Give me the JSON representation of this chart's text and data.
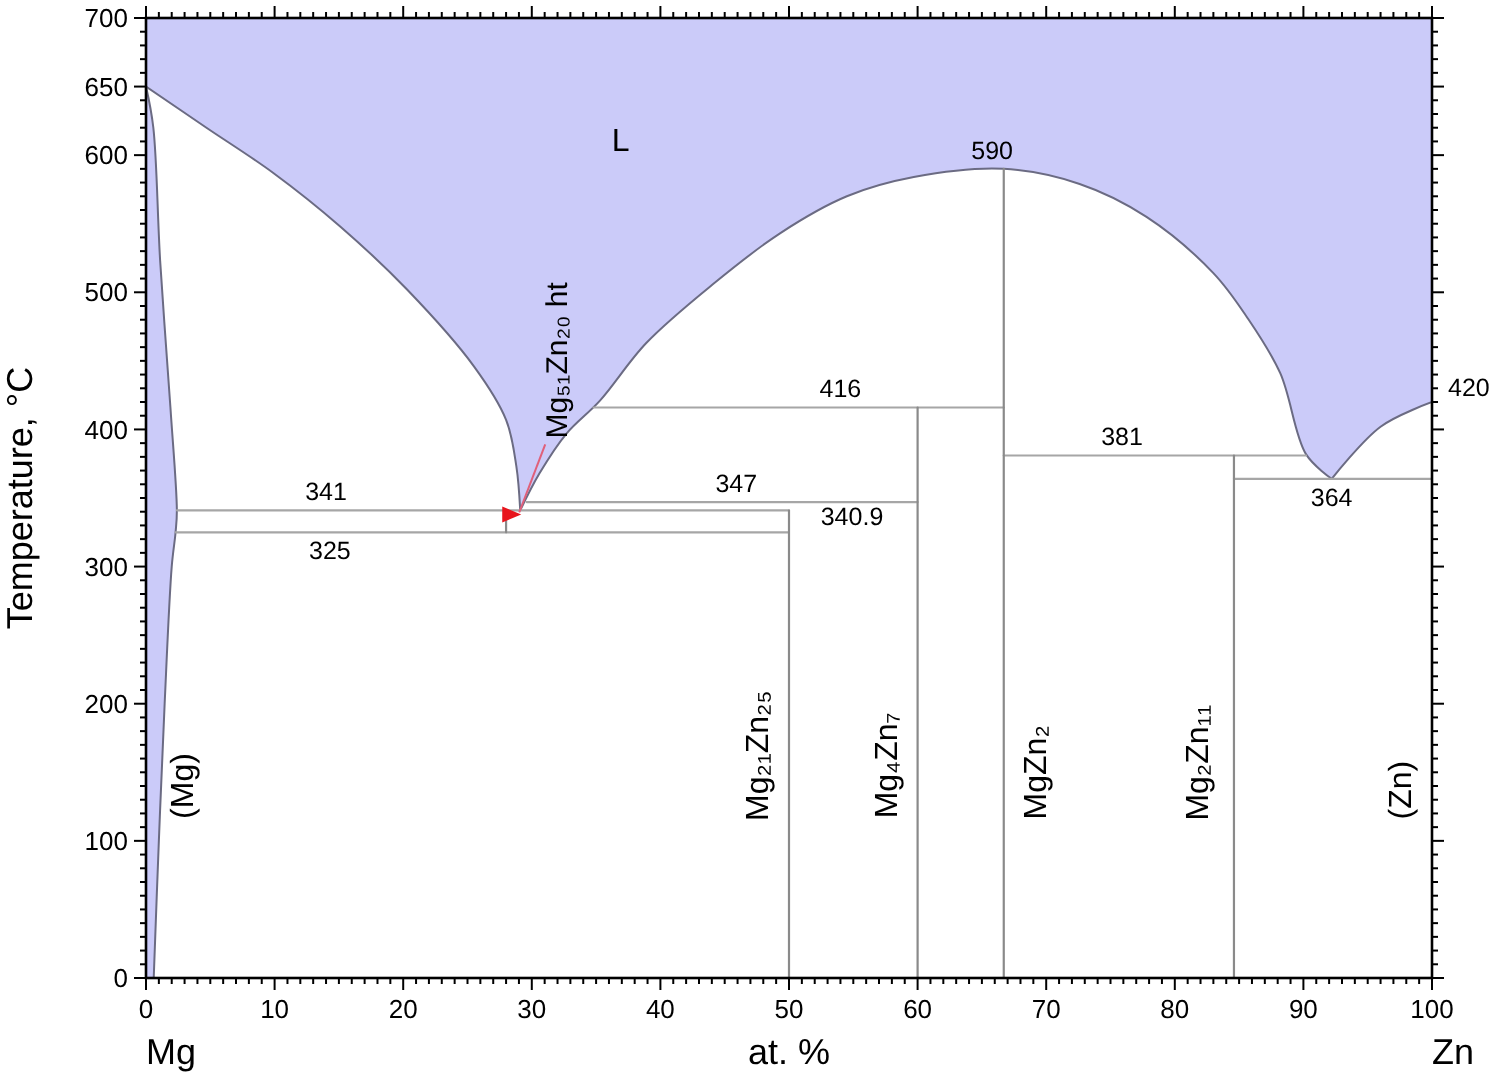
{
  "chart_data": {
    "type": "line",
    "xlabel": "at. %",
    "ylabel": "Temperature, °C",
    "xlim": [
      0,
      100
    ],
    "ylim": [
      0,
      700
    ],
    "xticks": [
      0,
      {
        "value": 1,
        "label": null
      },
      {
        "value": 2,
        "label": null
      },
      {
        "value": 3,
        "label": null
      },
      {
        "value": 4,
        "label": null
      },
      {
        "value": 5,
        "label": null
      },
      {
        "value": 6,
        "label": null
      },
      {
        "value": 7,
        "label": null
      },
      {
        "value": 8,
        "label": null
      },
      {
        "value": 9,
        "label": null
      },
      10,
      {
        "value": 11,
        "label": null
      },
      {
        "value": 12,
        "label": null
      },
      {
        "value": 13,
        "label": null
      },
      {
        "value": 14,
        "label": null
      },
      {
        "value": 15,
        "label": null
      },
      {
        "value": 16,
        "label": null
      },
      {
        "value": 17,
        "label": null
      },
      {
        "value": 18,
        "label": null
      },
      {
        "value": 19,
        "label": null
      },
      20,
      {
        "value": 21,
        "label": null
      },
      {
        "value": 22,
        "label": null
      },
      {
        "value": 23,
        "label": null
      },
      {
        "value": 24,
        "label": null
      },
      {
        "value": 25,
        "label": null
      },
      {
        "value": 26,
        "label": null
      },
      {
        "value": 27,
        "label": null
      },
      {
        "value": 28,
        "label": null
      },
      {
        "value": 29,
        "label": null
      },
      30,
      {
        "value": 31,
        "label": null
      },
      {
        "value": 32,
        "label": null
      },
      {
        "value": 33,
        "label": null
      },
      {
        "value": 34,
        "label": null
      },
      {
        "value": 35,
        "label": null
      },
      {
        "value": 36,
        "label": null
      },
      {
        "value": 37,
        "label": null
      },
      {
        "value": 38,
        "label": null
      },
      {
        "value": 39,
        "label": null
      },
      40,
      {
        "value": 41,
        "label": null
      },
      {
        "value": 42,
        "label": null
      },
      {
        "value": 43,
        "label": null
      },
      {
        "value": 44,
        "label": null
      },
      {
        "value": 45,
        "label": null
      },
      {
        "value": 46,
        "label": null
      },
      {
        "value": 47,
        "label": null
      },
      {
        "value": 48,
        "label": null
      },
      {
        "value": 49,
        "label": null
      },
      50,
      {
        "value": 51,
        "label": null
      },
      {
        "value": 52,
        "label": null
      },
      {
        "value": 53,
        "label": null
      },
      {
        "value": 54,
        "label": null
      },
      {
        "value": 55,
        "label": null
      },
      {
        "value": 56,
        "label": null
      },
      {
        "value": 57,
        "label": null
      },
      {
        "value": 58,
        "label": null
      },
      {
        "value": 59,
        "label": null
      },
      60,
      {
        "value": 61,
        "label": null
      },
      {
        "value": 62,
        "label": null
      },
      {
        "value": 63,
        "label": null
      },
      {
        "value": 64,
        "label": null
      },
      {
        "value": 65,
        "label": null
      },
      {
        "value": 66,
        "label": null
      },
      {
        "value": 67,
        "label": null
      },
      {
        "value": 68,
        "label": null
      },
      {
        "value": 69,
        "label": null
      },
      70,
      {
        "value": 71,
        "label": null
      },
      {
        "value": 72,
        "label": null
      },
      {
        "value": 73,
        "label": null
      },
      {
        "value": 74,
        "label": null
      },
      {
        "value": 75,
        "label": null
      },
      {
        "value": 76,
        "label": null
      },
      {
        "value": 77,
        "label": null
      },
      {
        "value": 78,
        "label": null
      },
      {
        "value": 79,
        "label": null
      },
      80,
      {
        "value": 81,
        "label": null
      },
      {
        "value": 82,
        "label": null
      },
      {
        "value": 83,
        "label": null
      },
      {
        "value": 84,
        "label": null
      },
      {
        "value": 85,
        "label": null
      },
      {
        "value": 86,
        "label": null
      },
      {
        "value": 87,
        "label": null
      },
      {
        "value": 88,
        "label": null
      },
      {
        "value": 89,
        "label": null
      },
      90,
      {
        "value": 91,
        "label": null
      },
      {
        "value": 92,
        "label": null
      },
      {
        "value": 93,
        "label": null
      },
      {
        "value": 94,
        "label": null
      },
      {
        "value": 95,
        "label": null
      },
      {
        "value": 96,
        "label": null
      },
      {
        "value": 97,
        "label": null
      },
      {
        "value": 98,
        "label": null
      },
      {
        "value": 99,
        "label": null
      },
      100
    ],
    "yticks": [
      0,
      {
        "value": 10,
        "label": null
      },
      {
        "value": 20,
        "label": null
      },
      {
        "value": 30,
        "label": null
      },
      {
        "value": 40,
        "label": null
      },
      {
        "value": 50,
        "label": null
      },
      {
        "value": 60,
        "label": null
      },
      {
        "value": 70,
        "label": null
      },
      {
        "value": 80,
        "label": null
      },
      {
        "value": 90,
        "label": null
      },
      100,
      {
        "value": 110,
        "label": null
      },
      {
        "value": 120,
        "label": null
      },
      {
        "value": 130,
        "label": null
      },
      {
        "value": 140,
        "label": null
      },
      {
        "value": 150,
        "label": null
      },
      {
        "value": 160,
        "label": null
      },
      {
        "value": 170,
        "label": null
      },
      {
        "value": 180,
        "label": null
      },
      {
        "value": 190,
        "label": null
      },
      200,
      {
        "value": 210,
        "label": null
      },
      {
        "value": 220,
        "label": null
      },
      {
        "value": 230,
        "label": null
      },
      {
        "value": 240,
        "label": null
      },
      {
        "value": 250,
        "label": null
      },
      {
        "value": 260,
        "label": null
      },
      {
        "value": 270,
        "label": null
      },
      {
        "value": 280,
        "label": null
      },
      {
        "value": 290,
        "label": null
      },
      300,
      {
        "value": 310,
        "label": null
      },
      {
        "value": 320,
        "label": null
      },
      {
        "value": 330,
        "label": null
      },
      {
        "value": 340,
        "label": null
      },
      {
        "value": 350,
        "label": null
      },
      {
        "value": 360,
        "label": null
      },
      {
        "value": 370,
        "label": null
      },
      {
        "value": 380,
        "label": null
      },
      {
        "value": 390,
        "label": null
      },
      400,
      {
        "value": 410,
        "label": null
      },
      {
        "value": 420,
        "label": null
      },
      {
        "value": 430,
        "label": null
      },
      {
        "value": 440,
        "label": null
      },
      {
        "value": 450,
        "label": null
      },
      {
        "value": 460,
        "label": null
      },
      {
        "value": 470,
        "label": null
      },
      {
        "value": 480,
        "label": null
      },
      {
        "value": 490,
        "label": null
      },
      500,
      {
        "value": 510,
        "label": null
      },
      {
        "value": 520,
        "label": null
      },
      {
        "value": 530,
        "label": null
      },
      {
        "value": 540,
        "label": null
      },
      {
        "value": 550,
        "label": null
      },
      {
        "value": 560,
        "label": null
      },
      {
        "value": 570,
        "label": null
      },
      {
        "value": 580,
        "label": null
      },
      {
        "value": 590,
        "label": null
      },
      600,
      {
        "value": 610,
        "label": null
      },
      {
        "value": 620,
        "label": null
      },
      {
        "value": 630,
        "label": null
      },
      {
        "value": 640,
        "label": null
      },
      650,
      {
        "value": 660,
        "label": null
      },
      {
        "value": 670,
        "label": null
      },
      {
        "value": 680,
        "label": null
      },
      {
        "value": 690,
        "label": null
      },
      700
    ],
    "series": [
      {
        "type": "area",
        "color": "#cbcbf9",
        "x": [
          0,
          4.7,
          9.9,
          15.1,
          20.3,
          25.5,
          28,
          28.8,
          29.1,
          30.6,
          32.7,
          35.3,
          38.9,
          44.1,
          49.3,
          54.5,
          59.7,
          66.7,
          72.6,
          77.8,
          83,
          85.6,
          88.2,
          90.2,
          92.2,
          96,
          100,
          100,
          0
        ],
        "values": [
          650,
          620,
          587,
          548,
          502,
          446,
          407,
          373,
          341,
          368,
          397,
          421,
          463,
          506,
          543,
          570,
          584,
          590,
          579,
          555,
          514,
          482,
          441,
          382,
          364,
          402,
          420,
          700,
          700
        ]
      },
      {
        "type": "area",
        "color": "#cbcbf9",
        "x": [
          0,
          0.6,
          1.0,
          1.45,
          2.0,
          2.3,
          2.4,
          1.9,
          1.1,
          0.57,
          0
        ],
        "values": [
          0,
          0,
          100,
          200,
          300,
          325,
          341,
          416,
          523,
          620,
          650
        ]
      },
      {
        "color": "#a6a6a6",
        "x": [
          2.4,
          50
        ],
        "values": [
          341,
          341
        ]
      },
      {
        "color": "#a6a6a6",
        "x": [
          2.3,
          50
        ],
        "values": [
          325,
          325
        ]
      },
      {
        "color": "#a6a6a6",
        "x": [
          29.6,
          60
        ],
        "values": [
          347,
          347
        ]
      },
      {
        "color": "#a6a6a6",
        "x": [
          34.8,
          66.7
        ],
        "values": [
          416,
          416
        ]
      },
      {
        "color": "#a6a6a6",
        "x": [
          66.7,
          90.2
        ],
        "values": [
          381,
          381
        ]
      },
      {
        "color": "#a6a6a6",
        "x": [
          84.6,
          100
        ],
        "values": [
          364,
          364
        ]
      },
      {
        "color": "#8a8a8a",
        "x": [
          28,
          28
        ],
        "values": [
          325,
          341
        ]
      },
      {
        "color": "#8a8a8a",
        "x": [
          50,
          50
        ],
        "values": [
          0,
          340.9
        ]
      },
      {
        "color": "#8a8a8a",
        "x": [
          60,
          60
        ],
        "values": [
          0,
          416
        ]
      },
      {
        "color": "#8a8a8a",
        "x": [
          66.7,
          66.7
        ],
        "values": [
          0,
          590
        ]
      },
      {
        "color": "#8a8a8a",
        "x": [
          84.6,
          84.6
        ],
        "values": [
          0,
          381
        ]
      }
    ],
    "annotations": [
      "L",
      {
        "text": "590",
        "x": 65.8,
        "y": 590
      },
      {
        "text": "416",
        "x": 54,
        "y": 416
      },
      {
        "text": "341",
        "x": 14,
        "y": 341
      },
      {
        "text": "325",
        "x": 14.3,
        "y": 325
      },
      {
        "text": "347",
        "x": 45.9,
        "y": 347
      },
      {
        "text": "340.9",
        "x": 54.9,
        "y": 340.9
      },
      {
        "text": "381",
        "x": 75.9,
        "y": 381
      },
      {
        "text": "364",
        "x": 92.2,
        "y": 364
      },
      {
        "text": "420",
        "x": 100,
        "y": 420
      },
      "(Mg)",
      "Mg₂₁Zn₂₅",
      "Mg₄Zn₇",
      "MgZn₂",
      "Mg₂Zn₁₁",
      "(Zn)",
      {
        "text": "Mg₅₁Zn₂₀ ht",
        "x": 28.4,
        "y": 338
      },
      "Mg",
      "Zn"
    ]
  }
}
